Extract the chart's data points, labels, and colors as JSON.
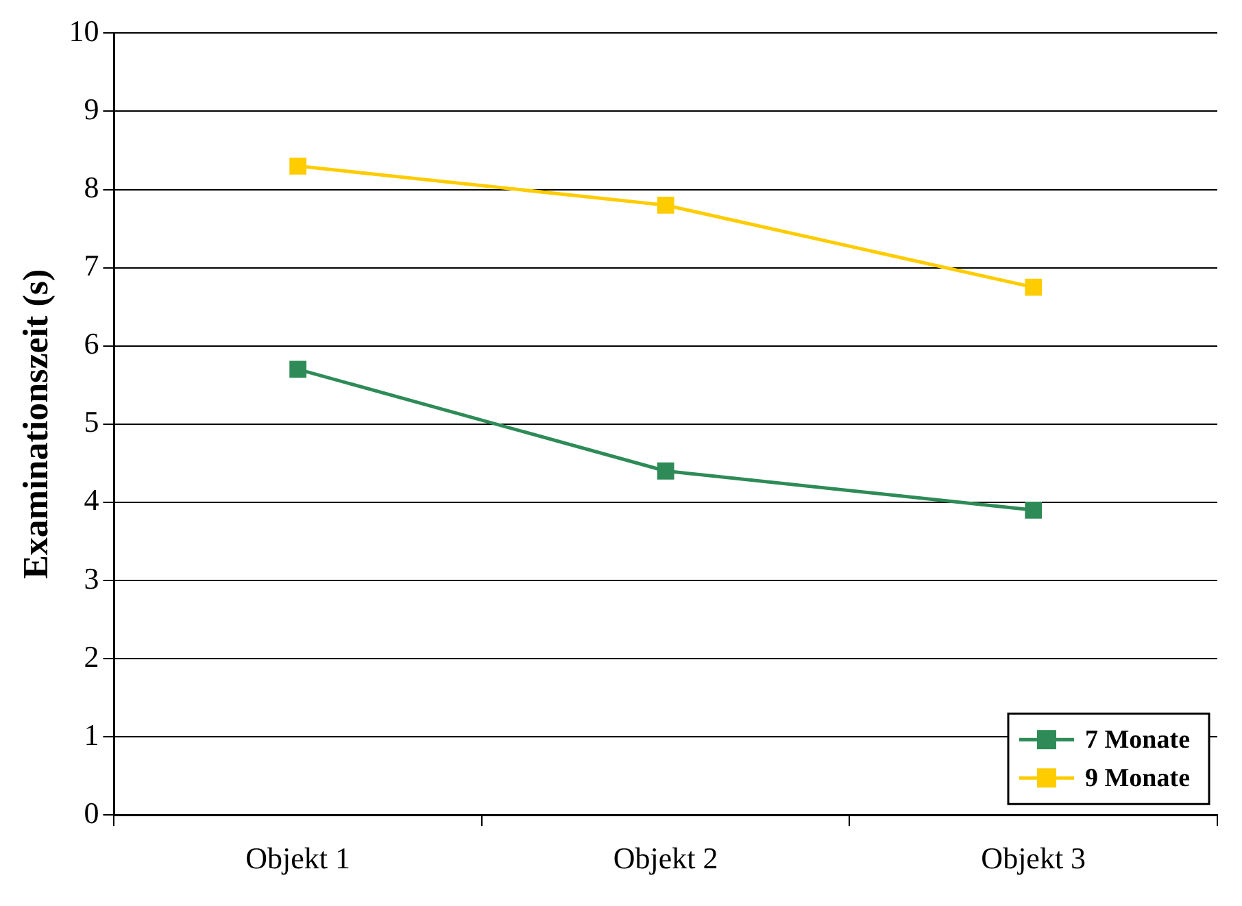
{
  "chart_data": {
    "type": "line",
    "ylabel": "Examinationszeit (s)",
    "categories": [
      "Objekt 1",
      "Objekt 2",
      "Objekt 3"
    ],
    "series": [
      {
        "name": "7 Monate",
        "color": "#2e8b57",
        "values": [
          5.7,
          4.4,
          3.9
        ]
      },
      {
        "name": "9 Monate",
        "color": "#ffcc00",
        "values": [
          8.3,
          7.8,
          6.75
        ]
      }
    ],
    "ylim": [
      0,
      10
    ],
    "yticks": [
      0,
      1,
      2,
      3,
      4,
      5,
      6,
      7,
      8,
      9,
      10
    ],
    "grid": "y",
    "legend": "bottom right",
    "marker": "square",
    "line_style": "solid"
  }
}
